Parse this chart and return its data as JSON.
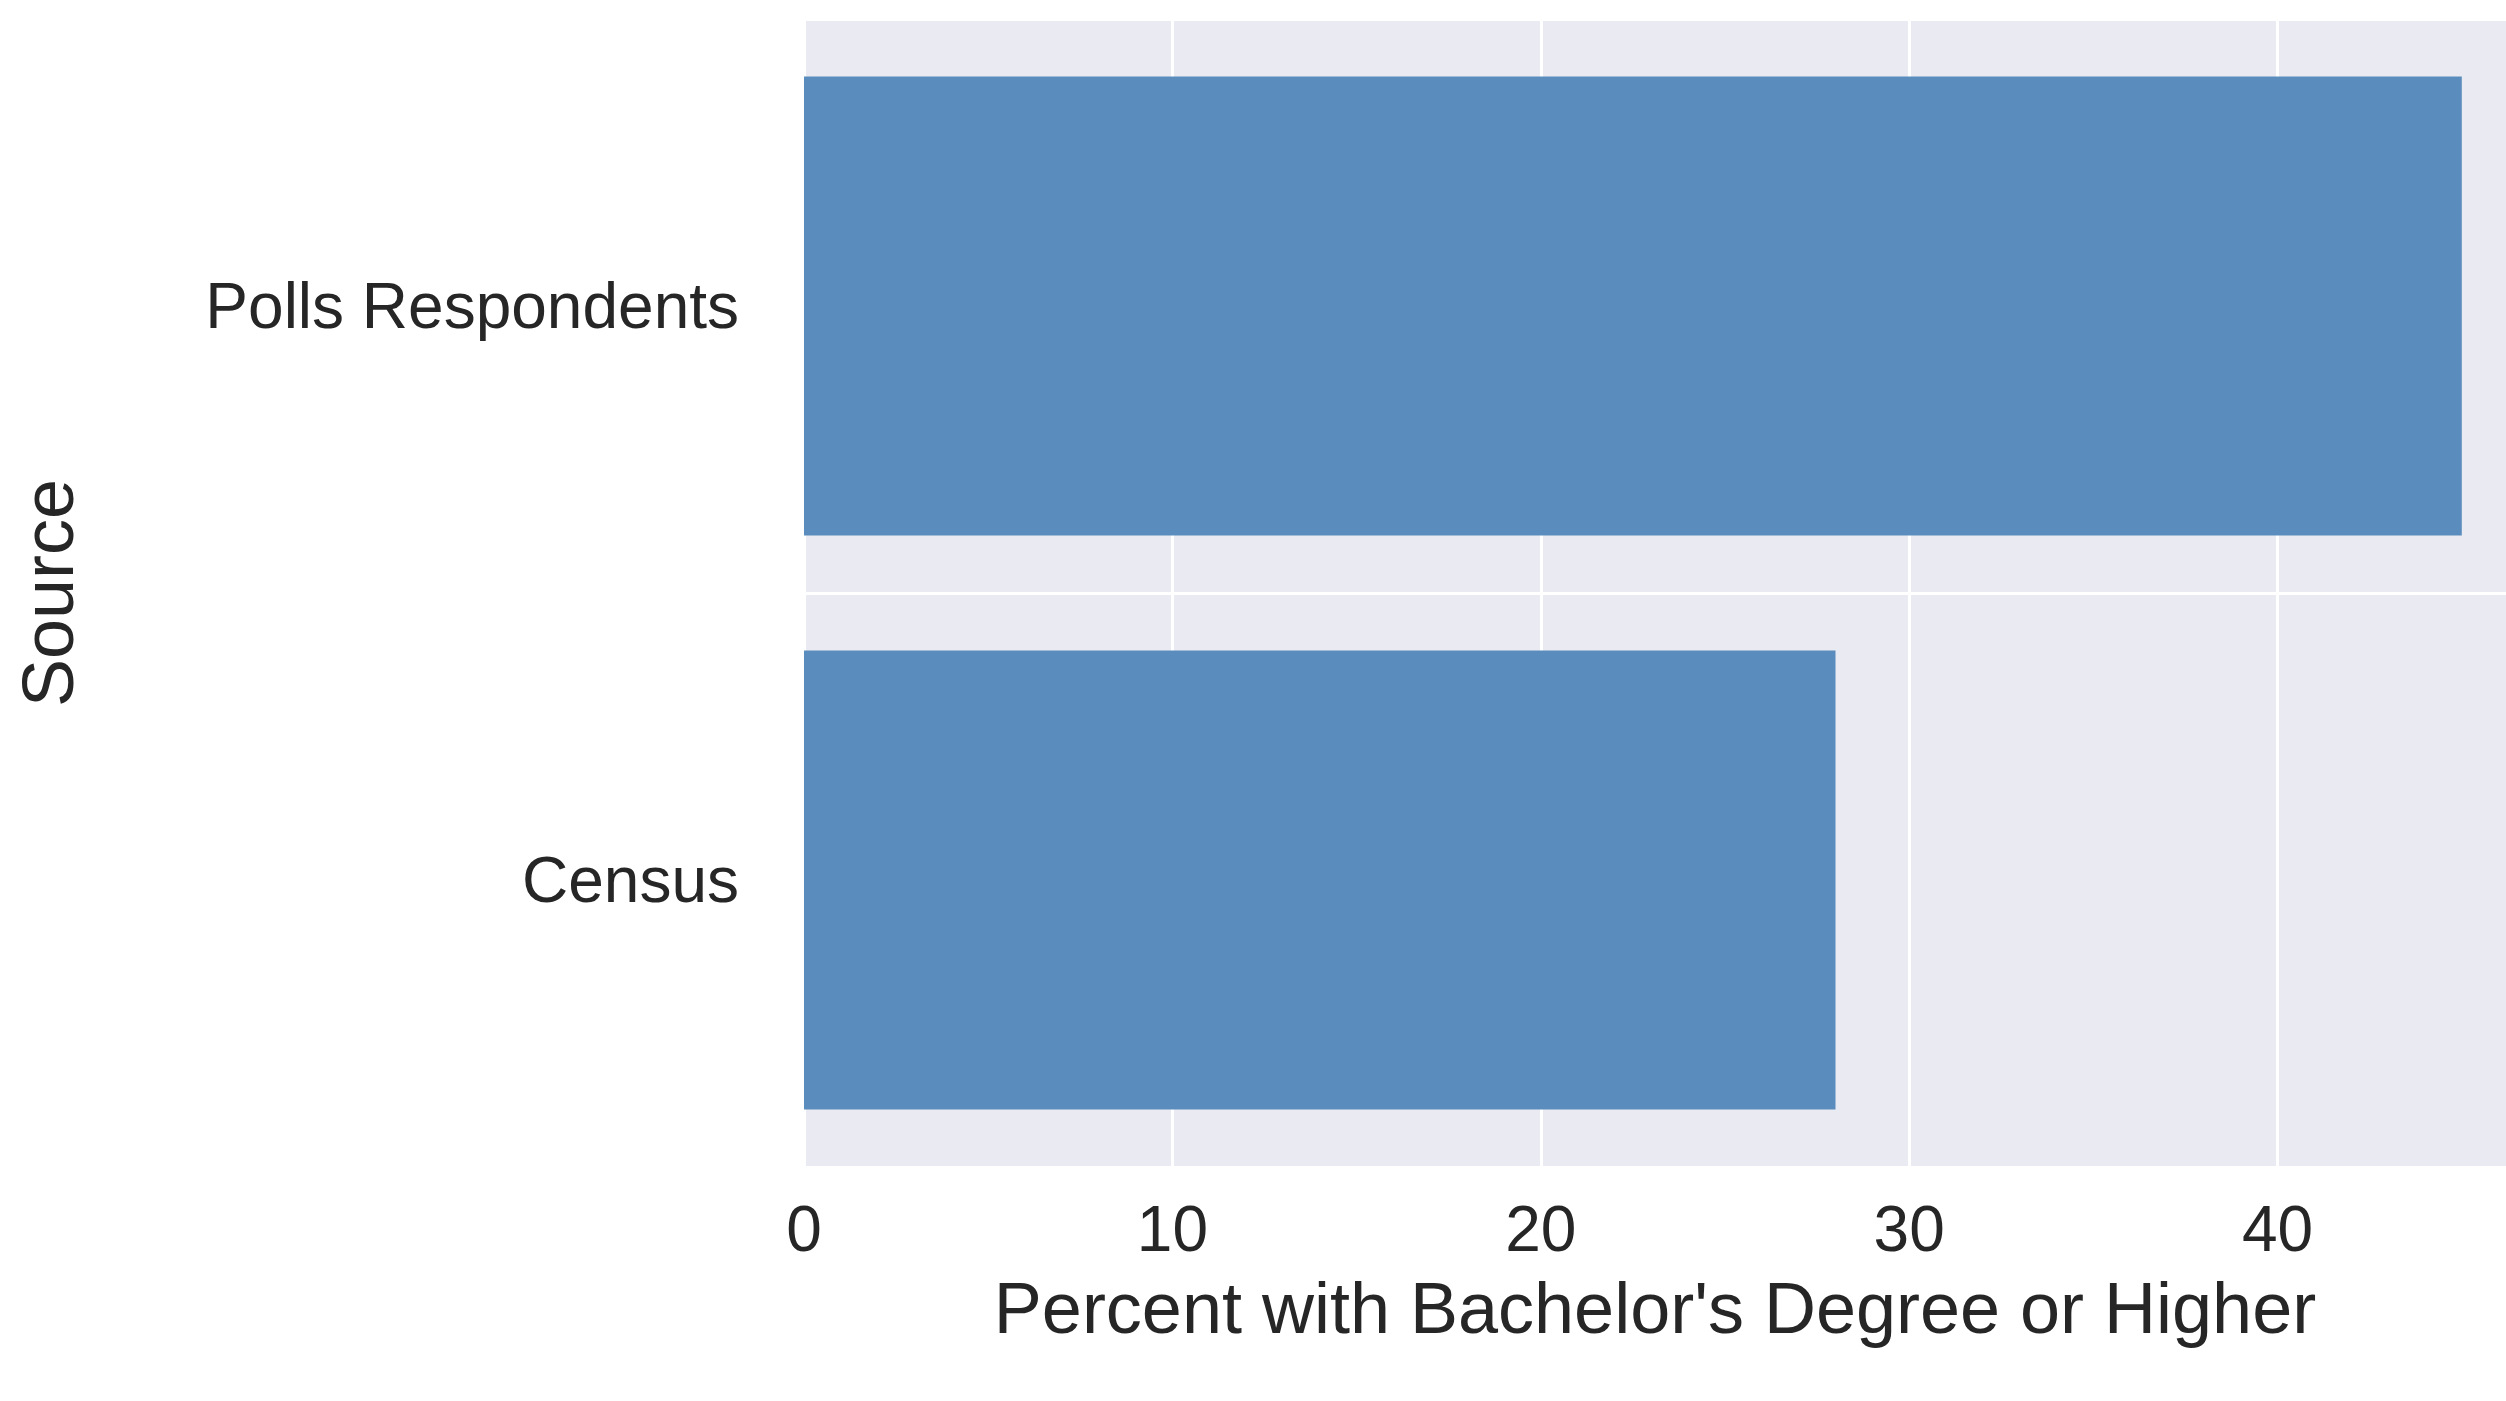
{
  "chart_data": {
    "type": "bar",
    "orientation": "horizontal",
    "categories": [
      "Polls Respondents",
      "Census"
    ],
    "values": [
      45,
      28
    ],
    "color": "#5a8dbd",
    "xlabel": "Percent with Bachelor's Degree or Higher",
    "ylabel": "Source",
    "xlim": [
      0,
      46.2
    ],
    "xticks": [
      0,
      10,
      20,
      30,
      40
    ],
    "grid": true
  }
}
